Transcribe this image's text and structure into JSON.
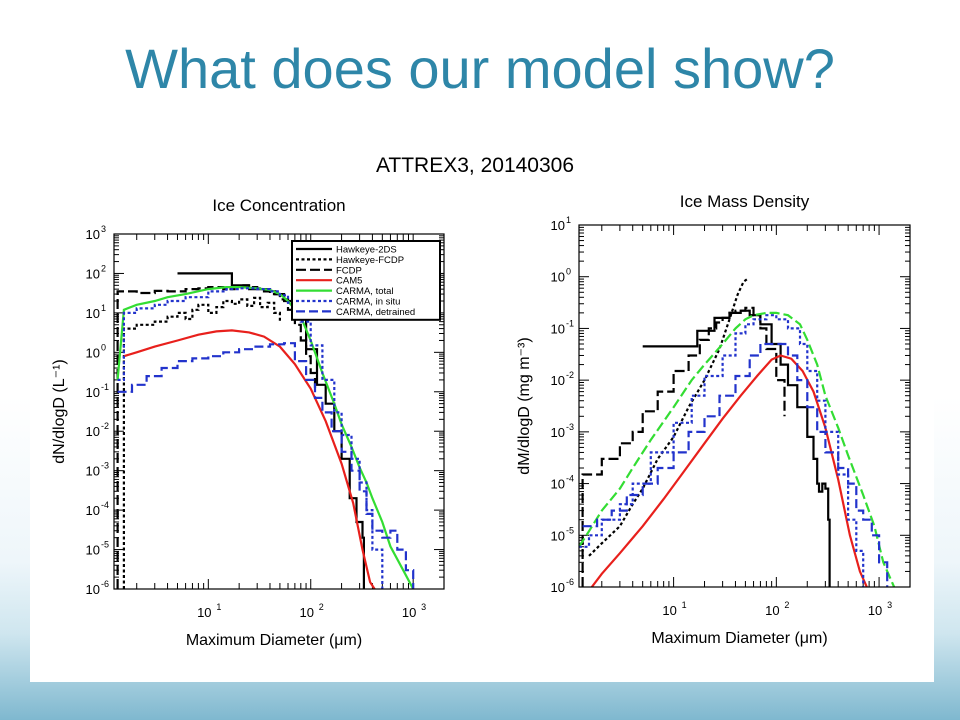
{
  "slide": {
    "title": "What does our model show?"
  },
  "figure": {
    "title": "ATTREX3, 20140306"
  },
  "chart_data": [
    {
      "type": "line",
      "title": "Ice Concentration",
      "xlabel": "Maximum Diameter (μm)",
      "ylabel": "dN/dlogD (L⁻¹)",
      "xscale": "log",
      "yscale": "log",
      "xlim": [
        1.2,
        2000
      ],
      "ylim": [
        1e-06,
        1000
      ],
      "x_ticks": [
        {
          "label": "10",
          "exp": "1",
          "v": 10
        },
        {
          "label": "10",
          "exp": "2",
          "v": 100
        },
        {
          "label": "10",
          "exp": "3",
          "v": 1000
        }
      ],
      "y_ticks": [
        {
          "label": "10",
          "exp": "3",
          "v": 1000
        },
        {
          "label": "10",
          "exp": "2",
          "v": 100
        },
        {
          "label": "10",
          "exp": "1",
          "v": 10
        },
        {
          "label": "10",
          "exp": "0",
          "v": 1
        },
        {
          "label": "10",
          "exp": "-1",
          "v": 0.1
        },
        {
          "label": "10",
          "exp": "-2",
          "v": 0.01
        },
        {
          "label": "10",
          "exp": "-3",
          "v": 0.001
        },
        {
          "label": "10",
          "exp": "-4",
          "v": 0.0001
        },
        {
          "label": "10",
          "exp": "-5",
          "v": 1e-05
        },
        {
          "label": "10",
          "exp": "-6",
          "v": 1e-06
        }
      ],
      "legend_position": "top-right",
      "series": [
        {
          "name": "Hawkeye-2DS",
          "color": "#000000",
          "dash": "",
          "step": true,
          "x": [
            5,
            10,
            17,
            25,
            35,
            45,
            55,
            70,
            90,
            115,
            140,
            170,
            200,
            240,
            280,
            320,
            330,
            330
          ],
          "y": [
            100,
            100,
            50,
            40,
            35,
            30,
            20,
            8,
            1.2,
            0.15,
            0.05,
            0.01,
            0.002,
            0.0002,
            5e-05,
            2e-05,
            1e-05,
            1e-06
          ]
        },
        {
          "name": "Hawkeye-FCDP",
          "color": "#000000",
          "dash": "3,2.5",
          "step": true,
          "x": [
            1.5,
            1.5,
            2,
            3,
            4,
            5,
            6,
            7,
            8,
            10,
            12,
            14,
            17,
            20,
            24,
            28,
            32,
            38,
            44,
            50
          ],
          "y": [
            1e-06,
            4,
            5,
            6,
            8,
            10,
            7,
            12,
            16,
            10,
            14,
            20,
            17,
            22,
            15,
            24,
            14,
            18,
            10,
            6
          ]
        },
        {
          "name": "FCDP",
          "color": "#000000",
          "dash": "10,4",
          "step": true,
          "x": [
            1.3,
            1.3,
            1.5,
            2,
            3,
            4,
            6,
            8,
            10,
            14,
            18,
            22,
            26,
            30,
            35,
            40,
            50,
            60,
            70,
            80,
            90,
            100,
            110
          ],
          "y": [
            1e-06,
            35,
            35,
            32,
            36,
            35,
            40,
            42,
            45,
            40,
            48,
            50,
            45,
            42,
            40,
            30,
            22,
            12,
            5,
            2,
            0.8,
            0.3,
            0.1
          ]
        },
        {
          "name": "CAM5",
          "color": "#e8201c",
          "dash": "",
          "step": false,
          "x": [
            1.5,
            2,
            3,
            5,
            8,
            12,
            17,
            25,
            35,
            50,
            70,
            100,
            140,
            200,
            260,
            320,
            380,
            420
          ],
          "y": [
            0.8,
            1.0,
            1.4,
            2.0,
            2.8,
            3.4,
            3.6,
            3.2,
            2.5,
            1.4,
            0.5,
            0.12,
            0.018,
            0.0015,
            0.00015,
            1e-05,
            1.5e-06,
            1e-06
          ]
        },
        {
          "name": "CARMA, total",
          "color": "#33dd33",
          "dash": "",
          "step": false,
          "x": [
            1.3,
            1.5,
            2,
            3,
            4,
            6,
            10,
            15,
            20,
            30,
            40,
            50,
            60,
            80,
            100,
            130,
            170,
            200,
            250,
            300,
            350,
            400,
            500,
            600,
            800,
            1000
          ],
          "y": [
            0.2,
            12,
            16,
            20,
            25,
            30,
            40,
            45,
            45,
            42,
            38,
            30,
            20,
            8,
            2,
            0.3,
            0.05,
            0.015,
            0.004,
            0.0012,
            0.0005,
            0.0002,
            5e-05,
            1.2e-05,
            3e-06,
            1e-06
          ]
        },
        {
          "name": "CARMA, in situ",
          "color": "#2233cc",
          "dash": "3,2.5",
          "step": true,
          "x": [
            1.3,
            1.5,
            2,
            3,
            4,
            6,
            10,
            15,
            20,
            30,
            40,
            50,
            60,
            80,
            100,
            130,
            170,
            200,
            250,
            300,
            350,
            400,
            500
          ],
          "y": [
            0.2,
            10,
            13,
            16,
            20,
            25,
            35,
            40,
            42,
            40,
            35,
            28,
            18,
            6,
            1.5,
            0.2,
            0.03,
            0.008,
            0.002,
            0.0005,
            0.0001,
            1e-05,
            1e-06
          ]
        },
        {
          "name": "CARMA, detrained",
          "color": "#2233cc",
          "dash": "9,4",
          "step": true,
          "x": [
            1.3,
            1.8,
            2.5,
            3.5,
            5,
            7,
            10,
            14,
            20,
            28,
            40,
            55,
            70,
            90,
            110,
            130,
            160,
            200,
            250,
            300,
            350,
            400,
            500,
            600,
            700,
            850,
            1000
          ],
          "y": [
            0.1,
            0.15,
            0.25,
            0.4,
            0.6,
            0.7,
            0.8,
            1.0,
            1.2,
            1.4,
            1.6,
            1.7,
            0.6,
            0.2,
            0.07,
            0.03,
            0.01,
            0.003,
            0.001,
            0.0003,
            8e-05,
            3e-05,
            2e-05,
            3e-05,
            1e-05,
            3e-06,
            1e-06
          ]
        }
      ]
    },
    {
      "type": "line",
      "title": "Ice Mass Density",
      "xlabel": "Maximum Diameter (μm)",
      "ylabel": "dM/dlogD (mg m⁻³)",
      "xscale": "log",
      "yscale": "log",
      "xlim": [
        1.2,
        2000
      ],
      "ylim": [
        1e-06,
        10
      ],
      "x_ticks": [
        {
          "label": "10",
          "exp": "1",
          "v": 10
        },
        {
          "label": "10",
          "exp": "2",
          "v": 100
        },
        {
          "label": "10",
          "exp": "3",
          "v": 1000
        }
      ],
      "y_ticks": [
        {
          "label": "10",
          "exp": "1",
          "v": 10
        },
        {
          "label": "10",
          "exp": "0",
          "v": 1
        },
        {
          "label": "10",
          "exp": "-1",
          "v": 0.1
        },
        {
          "label": "10",
          "exp": "-2",
          "v": 0.01
        },
        {
          "label": "10",
          "exp": "-3",
          "v": 0.001
        },
        {
          "label": "10",
          "exp": "-4",
          "v": 0.0001
        },
        {
          "label": "10",
          "exp": "-5",
          "v": 1e-05
        },
        {
          "label": "10",
          "exp": "-6",
          "v": 1e-06
        }
      ],
      "series": [
        {
          "name": "Hawkeye-2DS",
          "color": "#000000",
          "dash": "",
          "step": true,
          "x": [
            5,
            10,
            17,
            25,
            35,
            45,
            55,
            70,
            90,
            110,
            130,
            160,
            200,
            230,
            250,
            260,
            280,
            300,
            320,
            330,
            330
          ],
          "y": [
            0.045,
            0.045,
            0.09,
            0.16,
            0.2,
            0.22,
            0.18,
            0.12,
            0.05,
            0.02,
            0.008,
            0.003,
            0.0008,
            0.0003,
            0.0001,
            7e-05,
            0.0001,
            8e-05,
            2e-05,
            1e-05,
            1e-06
          ]
        },
        {
          "name": "Hawkeye-FCDP",
          "color": "#000000",
          "dash": "3,2.5",
          "step": false,
          "x": [
            1.5,
            2,
            3,
            4,
            5,
            7,
            10,
            14,
            20,
            28,
            35,
            42,
            48,
            52
          ],
          "y": [
            4e-06,
            7e-06,
            1.5e-05,
            4e-05,
            8e-05,
            0.0003,
            0.0008,
            0.003,
            0.01,
            0.04,
            0.15,
            0.45,
            0.8,
            0.9
          ]
        },
        {
          "name": "FCDP",
          "color": "#000000",
          "dash": "10,4",
          "step": true,
          "x": [
            1.3,
            1.3,
            1.5,
            2,
            3,
            4,
            5,
            7,
            10,
            14,
            18,
            22,
            26,
            30,
            35,
            40,
            50,
            60,
            70,
            80,
            100,
            120
          ],
          "y": [
            1e-06,
            0.00015,
            0.00015,
            0.0003,
            0.0006,
            0.001,
            0.0025,
            0.006,
            0.015,
            0.03,
            0.06,
            0.1,
            0.13,
            0.16,
            0.2,
            0.22,
            0.25,
            0.18,
            0.1,
            0.04,
            0.01,
            0.002
          ]
        },
        {
          "name": "CAM5",
          "color": "#e8201c",
          "dash": "",
          "step": false,
          "x": [
            1.6,
            2,
            3,
            5,
            8,
            12,
            20,
            30,
            45,
            65,
            90,
            110,
            140,
            180,
            230,
            300,
            400,
            520,
            650,
            760
          ],
          "y": [
            1e-06,
            1.8e-06,
            4.5e-06,
            1.5e-05,
            5e-05,
            0.00015,
            0.0006,
            0.0018,
            0.005,
            0.012,
            0.025,
            0.03,
            0.026,
            0.015,
            0.006,
            0.0012,
            0.00012,
            1e-05,
            2e-06,
            1e-06
          ]
        },
        {
          "name": "CARMA, total",
          "color": "#33dd33",
          "dash": "10,4",
          "step": false,
          "x": [
            1.2,
            1.5,
            2,
            3,
            4,
            6,
            10,
            15,
            20,
            30,
            40,
            50,
            60,
            80,
            100,
            130,
            170,
            200,
            250,
            300,
            400,
            500,
            700,
            900,
            1100,
            1400
          ],
          "y": [
            6e-06,
            1.2e-05,
            3e-05,
            8e-05,
            0.0002,
            0.0007,
            0.003,
            0.01,
            0.02,
            0.05,
            0.1,
            0.15,
            0.18,
            0.2,
            0.2,
            0.18,
            0.12,
            0.06,
            0.02,
            0.005,
            0.0012,
            0.00035,
            6e-05,
            1.5e-05,
            3e-06,
            1e-06
          ]
        },
        {
          "name": "CARMA, in situ",
          "color": "#2233cc",
          "dash": "3,2.5",
          "step": true,
          "x": [
            1.2,
            1.5,
            2,
            3,
            4,
            6,
            10,
            15,
            20,
            30,
            40,
            50,
            60,
            80,
            100,
            130,
            170,
            200,
            250,
            300,
            400,
            500,
            600,
            700
          ],
          "y": [
            6e-06,
            1e-05,
            2e-05,
            4e-05,
            0.0001,
            0.0004,
            0.0015,
            0.005,
            0.012,
            0.03,
            0.08,
            0.12,
            0.15,
            0.18,
            0.15,
            0.1,
            0.05,
            0.015,
            0.004,
            0.001,
            0.00015,
            2e-05,
            5e-06,
            1e-06
          ]
        },
        {
          "name": "CARMA, detrained",
          "color": "#2233cc",
          "dash": "9,4",
          "step": true,
          "x": [
            1.3,
            1.8,
            2.5,
            3.5,
            5,
            7,
            10,
            14,
            20,
            28,
            40,
            55,
            70,
            90,
            110,
            130,
            160,
            200,
            250,
            300,
            400,
            500,
            600,
            700,
            850,
            1000,
            1200
          ],
          "y": [
            1.5e-05,
            2e-05,
            3e-05,
            6e-05,
            0.0001,
            0.0002,
            0.0004,
            0.001,
            0.002,
            0.005,
            0.012,
            0.03,
            0.05,
            0.05,
            0.05,
            0.03,
            0.01,
            0.003,
            0.001,
            0.0004,
            0.0002,
            0.0001,
            3e-05,
            2e-05,
            1e-05,
            3e-06,
            1e-06
          ]
        }
      ]
    }
  ]
}
